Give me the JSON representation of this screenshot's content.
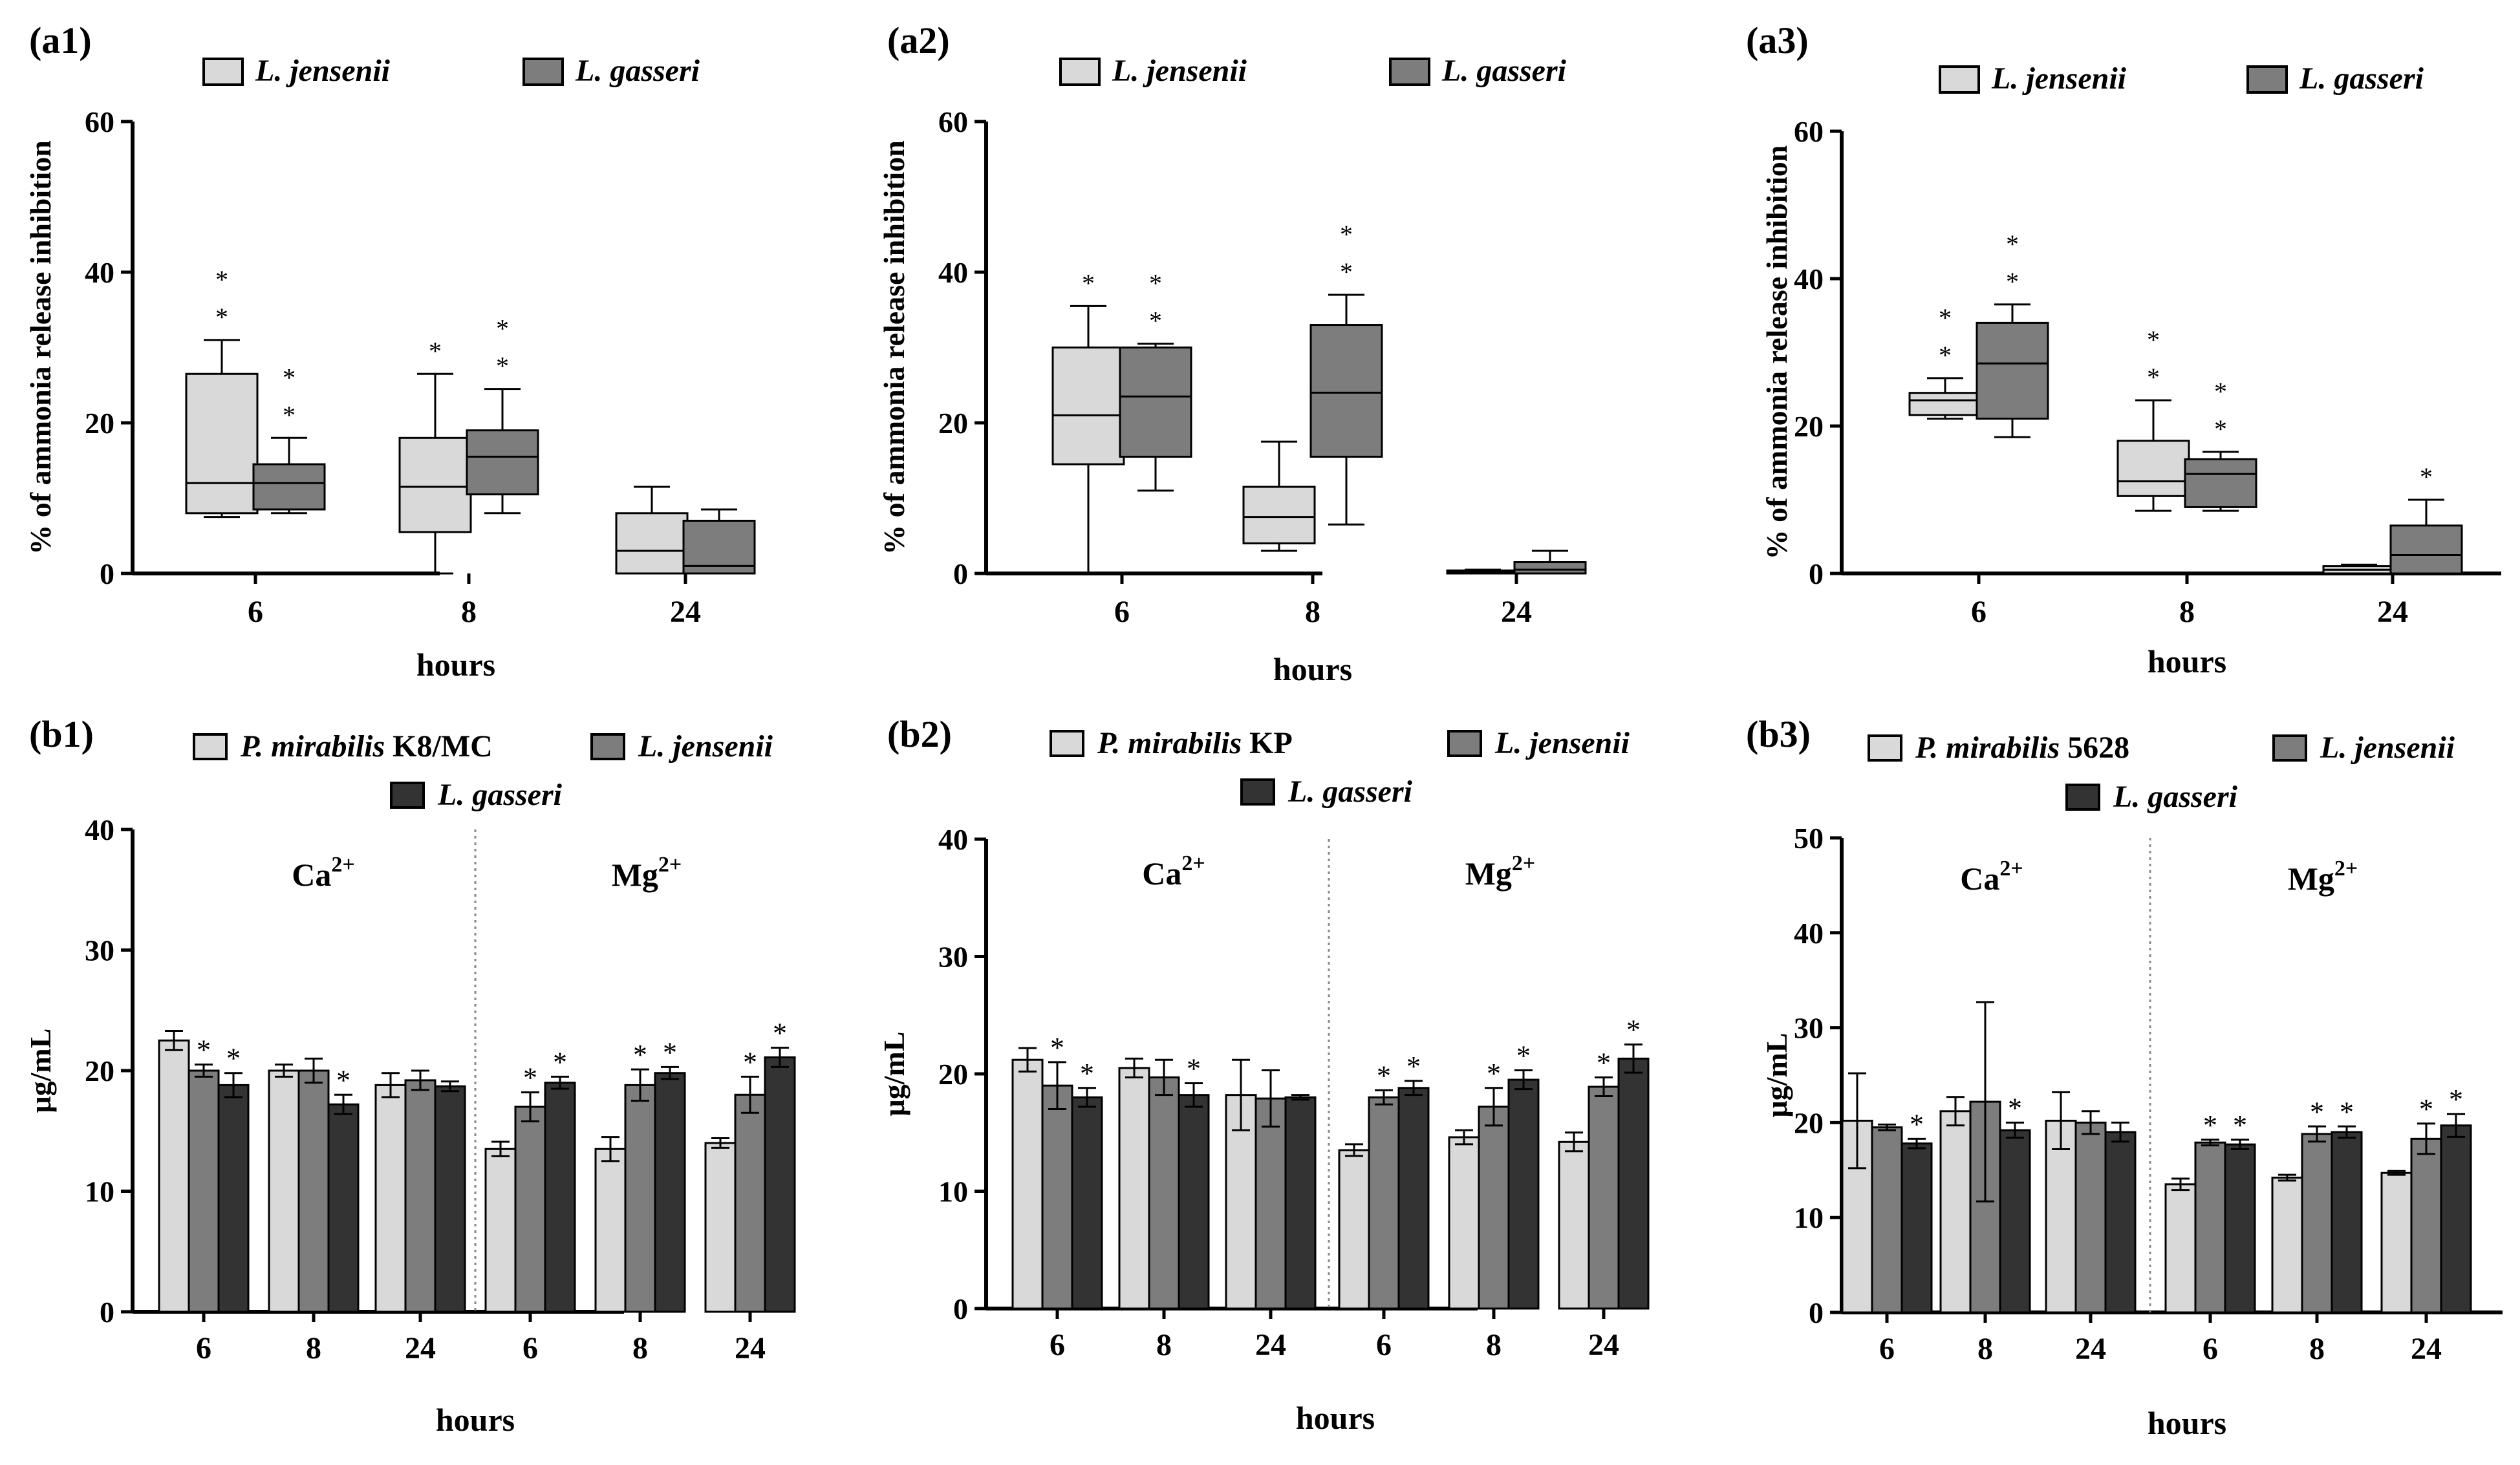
{
  "figure": {
    "colors": {
      "light": "#d9d9d9",
      "mid": "#7d7d7d",
      "dark": "#333333",
      "stroke": "#000000",
      "divider": "#888888"
    }
  },
  "chart_data": [
    {
      "id": "a1",
      "panel_label": "(a1)",
      "type": "box",
      "xlabel": "hours",
      "ylabel": "% of ammonia release inhibition",
      "ylim": [
        0,
        60
      ],
      "yticks": [
        0,
        20,
        40,
        60
      ],
      "categories": [
        "6",
        "8",
        "24"
      ],
      "series": [
        {
          "name": "L. jensenii",
          "color": "#d9d9d9",
          "boxes": [
            {
              "min": 7.5,
              "q1": 8,
              "median": 12,
              "q3": 26.5,
              "max": 31,
              "stars": [
                "*",
                "*"
              ]
            },
            {
              "min": 0,
              "q1": 5.5,
              "median": 11.5,
              "q3": 18,
              "max": 26.5,
              "stars": [
                "*"
              ]
            },
            {
              "min": 0,
              "q1": 0,
              "median": 3,
              "q3": 8,
              "max": 11.5,
              "stars": []
            }
          ]
        },
        {
          "name": "L. gasseri",
          "color": "#7d7d7d",
          "boxes": [
            {
              "min": 8,
              "q1": 8.5,
              "median": 12,
              "q3": 14.5,
              "max": 18,
              "stars": [
                "*",
                "*"
              ]
            },
            {
              "min": 8,
              "q1": 10.5,
              "median": 15.5,
              "q3": 19,
              "max": 24.5,
              "stars": [
                "*",
                "*"
              ]
            },
            {
              "min": 0,
              "q1": 0,
              "median": 1,
              "q3": 7,
              "max": 8.5,
              "stars": []
            }
          ]
        }
      ]
    },
    {
      "id": "a2",
      "panel_label": "(a2)",
      "type": "box",
      "xlabel": "hours",
      "ylabel": "% of ammonia release inhibition",
      "ylim": [
        0,
        60
      ],
      "yticks": [
        0,
        20,
        40,
        60
      ],
      "categories": [
        "6",
        "8",
        "24"
      ],
      "series": [
        {
          "name": "L. jensenii",
          "color": "#d9d9d9",
          "boxes": [
            {
              "min": 0,
              "q1": 14.5,
              "median": 21,
              "q3": 30,
              "max": 35.5,
              "stars": [
                "*"
              ]
            },
            {
              "min": 3,
              "q1": 4,
              "median": 7.5,
              "q3": 11.5,
              "max": 17.5,
              "stars": []
            },
            {
              "min": 0,
              "q1": 0,
              "median": 0.2,
              "q3": 0.4,
              "max": 0.5,
              "stars": []
            }
          ]
        },
        {
          "name": "L. gasseri",
          "color": "#7d7d7d",
          "boxes": [
            {
              "min": 11,
              "q1": 15.5,
              "median": 23.5,
              "q3": 30,
              "max": 30.5,
              "stars": [
                "*",
                "*"
              ]
            },
            {
              "min": 6.5,
              "q1": 15.5,
              "median": 24,
              "q3": 33,
              "max": 37,
              "stars": [
                "*",
                "*"
              ]
            },
            {
              "min": 0,
              "q1": 0,
              "median": 0.5,
              "q3": 1.5,
              "max": 3,
              "stars": []
            }
          ]
        }
      ]
    },
    {
      "id": "a3",
      "panel_label": "(a3)",
      "type": "box",
      "xlabel": "hours",
      "ylabel": "% of ammonia release inhibition",
      "ylim": [
        0,
        60
      ],
      "yticks": [
        0,
        20,
        40,
        60
      ],
      "categories": [
        "6",
        "8",
        "24"
      ],
      "series": [
        {
          "name": "L. jensenii",
          "color": "#d9d9d9",
          "boxes": [
            {
              "min": 21,
              "q1": 21.5,
              "median": 23.5,
              "q3": 24.5,
              "max": 26.5,
              "stars": [
                "*",
                "*"
              ]
            },
            {
              "min": 8.5,
              "q1": 10.5,
              "median": 12.5,
              "q3": 18,
              "max": 23.5,
              "stars": [
                "*",
                "*"
              ]
            },
            {
              "min": 0,
              "q1": 0,
              "median": 0.5,
              "q3": 1,
              "max": 1.2,
              "stars": []
            }
          ]
        },
        {
          "name": "L. gasseri",
          "color": "#7d7d7d",
          "boxes": [
            {
              "min": 18.5,
              "q1": 21,
              "median": 28.5,
              "q3": 34,
              "max": 36.5,
              "stars": [
                "*",
                "*"
              ]
            },
            {
              "min": 8.5,
              "q1": 9,
              "median": 13.5,
              "q3": 15.5,
              "max": 16.5,
              "stars": [
                "*",
                "*"
              ]
            },
            {
              "min": 0,
              "q1": 0,
              "median": 2.5,
              "q3": 6.5,
              "max": 10,
              "stars": [
                "*"
              ]
            }
          ]
        }
      ]
    },
    {
      "id": "b1",
      "panel_label": "(b1)",
      "type": "bar",
      "xlabel": "hours",
      "ylabel": "μg/mL",
      "ylim": [
        0,
        40
      ],
      "yticks": [
        0,
        10,
        20,
        30,
        40
      ],
      "groups": [
        {
          "label": "Ca",
          "sup": "2+",
          "categories": [
            "6",
            "8",
            "24"
          ]
        },
        {
          "label": "Mg",
          "sup": "2+",
          "categories": [
            "6",
            "8",
            "24"
          ]
        }
      ],
      "series": [
        {
          "name": "P. mirabilis",
          "name_suffix": "K8/MC",
          "color": "#d9d9d9",
          "values": [
            22.5,
            20,
            18.8,
            13.5,
            13.5,
            14
          ],
          "errors": [
            0.8,
            0.5,
            1,
            0.6,
            1,
            0.4
          ],
          "stars": [
            "",
            "",
            "",
            "",
            "",
            ""
          ]
        },
        {
          "name": "L. jensenii",
          "color": "#7d7d7d",
          "values": [
            20,
            20,
            19.2,
            17,
            18.8,
            18
          ],
          "errors": [
            0.5,
            1,
            0.8,
            1.2,
            1.3,
            1.5
          ],
          "stars": [
            "*",
            "",
            "",
            "*",
            "*",
            "*"
          ]
        },
        {
          "name": "L. gasseri",
          "color": "#333333",
          "values": [
            18.8,
            17.2,
            18.7,
            19,
            19.8,
            21.1
          ],
          "errors": [
            1,
            0.8,
            0.4,
            0.5,
            0.5,
            0.8
          ],
          "stars": [
            "*",
            "*",
            "",
            "*",
            "*",
            "*"
          ]
        }
      ]
    },
    {
      "id": "b2",
      "panel_label": "(b2)",
      "type": "bar",
      "xlabel": "hours",
      "ylabel": "μg/mL",
      "ylim": [
        0,
        40
      ],
      "yticks": [
        0,
        10,
        20,
        30,
        40
      ],
      "groups": [
        {
          "label": "Ca",
          "sup": "2+",
          "categories": [
            "6",
            "8",
            "24"
          ]
        },
        {
          "label": "Mg",
          "sup": "2+",
          "categories": [
            "6",
            "8",
            "24"
          ]
        }
      ],
      "series": [
        {
          "name": "P. mirabilis",
          "name_suffix": "KP",
          "color": "#d9d9d9",
          "values": [
            21.2,
            20.5,
            18.2,
            13.5,
            14.6,
            14.2
          ],
          "errors": [
            1,
            0.8,
            3,
            0.5,
            0.6,
            0.8
          ],
          "stars": [
            "",
            "",
            "",
            "",
            "",
            ""
          ]
        },
        {
          "name": "L. jensenii",
          "color": "#7d7d7d",
          "values": [
            19,
            19.7,
            17.9,
            18,
            17.2,
            18.9
          ],
          "errors": [
            2,
            1.5,
            2.4,
            0.6,
            1.6,
            0.8
          ],
          "stars": [
            "*",
            "",
            "",
            "*",
            "*",
            "*"
          ]
        },
        {
          "name": "L. gasseri",
          "color": "#333333",
          "values": [
            18,
            18.2,
            18,
            18.8,
            19.5,
            21.3
          ],
          "errors": [
            0.8,
            1,
            0.2,
            0.6,
            0.8,
            1.2
          ],
          "stars": [
            "*",
            "*",
            "",
            "*",
            "*",
            "*"
          ]
        }
      ]
    },
    {
      "id": "b3",
      "panel_label": "(b3)",
      "type": "bar",
      "xlabel": "hours",
      "ylabel": "μg/mL",
      "ylim": [
        0,
        50
      ],
      "yticks": [
        0,
        10,
        20,
        30,
        40,
        50
      ],
      "groups": [
        {
          "label": "Ca",
          "sup": "2+",
          "categories": [
            "6",
            "8",
            "24"
          ]
        },
        {
          "label": "Mg",
          "sup": "2+",
          "categories": [
            "6",
            "8",
            "24"
          ]
        }
      ],
      "series": [
        {
          "name": "P. mirabilis",
          "name_suffix": "5628",
          "color": "#d9d9d9",
          "values": [
            20.2,
            21.2,
            20.2,
            13.5,
            14.2,
            14.7
          ],
          "errors": [
            5,
            1.5,
            3,
            0.6,
            0.3,
            0.2
          ],
          "stars": [
            "",
            "",
            "",
            "",
            "",
            ""
          ]
        },
        {
          "name": "L. jensenii",
          "color": "#7d7d7d",
          "values": [
            19.5,
            22.2,
            20,
            17.9,
            18.8,
            18.3
          ],
          "errors": [
            0.3,
            10.5,
            1.2,
            0.3,
            0.8,
            1.6
          ],
          "stars": [
            "",
            "",
            "",
            "*",
            "*",
            "*"
          ]
        },
        {
          "name": "L. gasseri",
          "color": "#333333",
          "values": [
            17.8,
            19.2,
            19,
            17.7,
            19,
            19.7
          ],
          "errors": [
            0.5,
            0.8,
            1,
            0.5,
            0.6,
            1.2
          ],
          "stars": [
            "*",
            "*",
            "",
            "*",
            "*",
            "*"
          ]
        }
      ]
    }
  ]
}
